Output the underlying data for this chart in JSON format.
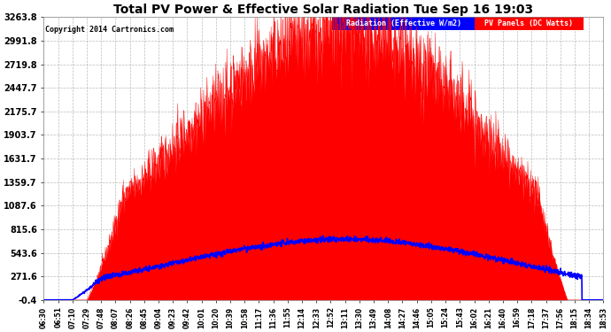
{
  "title": "Total PV Power & Effective Solar Radiation Tue Sep 16 19:03",
  "copyright": "Copyright 2014 Cartronics.com",
  "bg_color": "#ffffff",
  "plot_bg_color": "#ffffff",
  "grid_color": "#aaaaaa",
  "title_color": "#000000",
  "tick_color": "#000000",
  "ymin": -0.4,
  "ymax": 3263.8,
  "yticks": [
    -0.4,
    271.6,
    543.6,
    815.6,
    1087.6,
    1359.7,
    1631.7,
    1903.7,
    2175.7,
    2447.7,
    2719.8,
    2991.8,
    3263.8
  ],
  "ytick_labels": [
    "-0.4",
    "271.6",
    "543.6",
    "815.6",
    "1087.6",
    "1359.7",
    "1631.7",
    "1903.7",
    "2175.7",
    "2447.7",
    "2719.8",
    "2991.8",
    "3263.8"
  ],
  "xtick_labels": [
    "06:30",
    "06:51",
    "07:10",
    "07:29",
    "07:48",
    "08:07",
    "08:26",
    "08:45",
    "09:04",
    "09:23",
    "09:42",
    "10:01",
    "10:20",
    "10:39",
    "10:58",
    "11:17",
    "11:36",
    "11:55",
    "12:14",
    "12:33",
    "12:52",
    "13:11",
    "13:30",
    "13:49",
    "14:08",
    "14:27",
    "14:46",
    "15:05",
    "15:24",
    "15:43",
    "16:02",
    "16:21",
    "16:40",
    "16:59",
    "17:18",
    "17:37",
    "17:56",
    "18:15",
    "18:34",
    "18:53"
  ],
  "pv_color": "#ff0000",
  "pv_fill_color": "#ff0000",
  "radiation_color": "#0000ff",
  "legend_radiation_bg": "#0000ff",
  "legend_pv_bg": "#ff0000",
  "legend_radiation_text": "Radiation (Effective W/m2)",
  "legend_pv_text": "PV Panels (DC Watts)"
}
